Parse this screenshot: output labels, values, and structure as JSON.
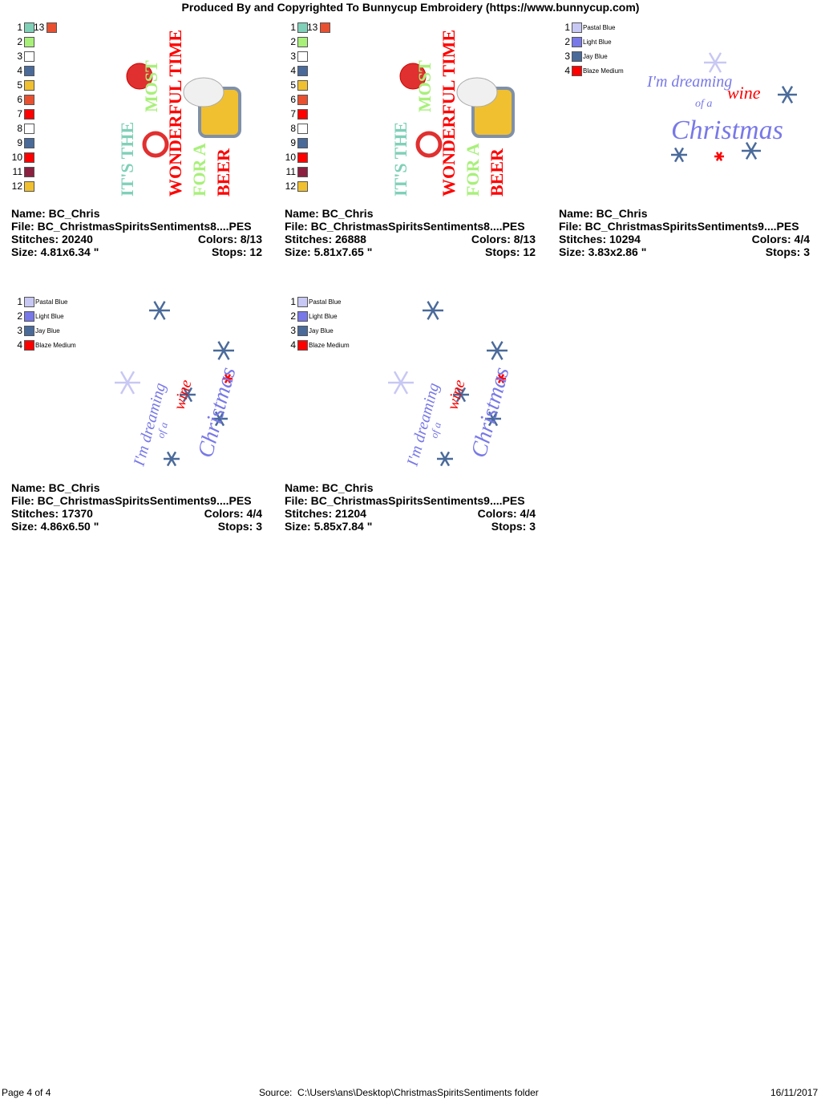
{
  "header": {
    "title": "Produced By and Copyrighted To Bunnycup Embroidery (https://www.bunnycup.com)"
  },
  "designs": [
    {
      "swatches": [
        {
          "number": 1,
          "color": "#80d0b8"
        },
        {
          "number": 2,
          "color": "#a8f07a"
        },
        {
          "number": 3,
          "color": "#ffffff"
        },
        {
          "number": 4,
          "color": "#4a6a9a"
        },
        {
          "number": 5,
          "color": "#f0c030"
        },
        {
          "number": 6,
          "color": "#e85030"
        },
        {
          "number": 7,
          "color": "#ff0000"
        },
        {
          "number": 8,
          "color": "#ffffff"
        },
        {
          "number": 9,
          "color": "#4a6a9a"
        },
        {
          "number": 10,
          "color": "#ff0000"
        },
        {
          "number": 11,
          "color": "#8b2040"
        },
        {
          "number": 12,
          "color": "#f0c030"
        },
        {
          "number": 13,
          "color": "#e85030"
        }
      ],
      "art_text": [
        "IT'S THE",
        "MOST",
        "WONDERFUL TIME",
        "FOR A",
        "BEER"
      ],
      "name": "Name: BC_Chris",
      "file": "File: BC_ChristmasSpiritsSentiments8....PES",
      "stitches": "Stitches: 20240",
      "colors": "Colors: 8/13",
      "size": "Size: 4.81x6.34 \"",
      "stops": "Stops: 12"
    },
    {
      "swatches": [
        {
          "number": 1,
          "color": "#80d0b8"
        },
        {
          "number": 2,
          "color": "#a8f07a"
        },
        {
          "number": 3,
          "color": "#ffffff"
        },
        {
          "number": 4,
          "color": "#4a6a9a"
        },
        {
          "number": 5,
          "color": "#f0c030"
        },
        {
          "number": 6,
          "color": "#e85030"
        },
        {
          "number": 7,
          "color": "#ff0000"
        },
        {
          "number": 8,
          "color": "#ffffff"
        },
        {
          "number": 9,
          "color": "#4a6a9a"
        },
        {
          "number": 10,
          "color": "#ff0000"
        },
        {
          "number": 11,
          "color": "#8b2040"
        },
        {
          "number": 12,
          "color": "#f0c030"
        },
        {
          "number": 13,
          "color": "#e85030"
        }
      ],
      "art_text": [
        "IT'S THE",
        "MOST",
        "WONDERFUL TIME",
        "FOR A",
        "BEER"
      ],
      "name": "Name: BC_Chris",
      "file": "File: BC_ChristmasSpiritsSentiments8....PES",
      "stitches": "Stitches: 26888",
      "colors": "Colors: 8/13",
      "size": "Size: 5.81x7.65 \"",
      "stops": "Stops: 12"
    },
    {
      "swatches": [
        {
          "number": 1,
          "color": "#c8c8f4",
          "label": "Pastal Blue"
        },
        {
          "number": 2,
          "color": "#7878e8",
          "label": "Light Blue"
        },
        {
          "number": 3,
          "color": "#4a6a9a",
          "label": "Jay Blue"
        },
        {
          "number": 4,
          "color": "#ff0000",
          "label": "Blaze Medium"
        }
      ],
      "art_text": [
        "I'm dreaming",
        "of a",
        "wine",
        "Christmas"
      ],
      "name": "Name: BC_Chris",
      "file": "File: BC_ChristmasSpiritsSentiments9....PES",
      "stitches": "Stitches: 10294",
      "colors": "Colors: 4/4",
      "size": "Size: 3.83x2.86 \"",
      "stops": "Stops: 3"
    },
    {
      "swatches": [
        {
          "number": 1,
          "color": "#c8c8f4",
          "label": "Pastal Blue"
        },
        {
          "number": 2,
          "color": "#7878e8",
          "label": "Light Blue"
        },
        {
          "number": 3,
          "color": "#4a6a9a",
          "label": "Jay Blue"
        },
        {
          "number": 4,
          "color": "#ff0000",
          "label": "Blaze Medium"
        }
      ],
      "art_text": [
        "I'm dreaming",
        "of a",
        "wine",
        "Christmas"
      ],
      "name": "Name: BC_Chris",
      "file": "File: BC_ChristmasSpiritsSentiments9....PES",
      "stitches": "Stitches: 17370",
      "colors": "Colors: 4/4",
      "size": "Size: 4.86x6.50 \"",
      "stops": "Stops: 3"
    },
    {
      "swatches": [
        {
          "number": 1,
          "color": "#c8c8f4",
          "label": "Pastal Blue"
        },
        {
          "number": 2,
          "color": "#7878e8",
          "label": "Light Blue"
        },
        {
          "number": 3,
          "color": "#4a6a9a",
          "label": "Jay Blue"
        },
        {
          "number": 4,
          "color": "#ff0000",
          "label": "Blaze Medium"
        }
      ],
      "art_text": [
        "I'm dreaming",
        "of a",
        "wine",
        "Christmas"
      ],
      "name": "Name: BC_Chris",
      "file": "File: BC_ChristmasSpiritsSentiments9....PES",
      "stitches": "Stitches: 21204",
      "colors": "Colors: 4/4",
      "size": "Size: 5.85x7.84 \"",
      "stops": "Stops: 3"
    }
  ],
  "footer": {
    "page": "Page 4 of 4",
    "source": "Source:  C:\\Users\\ans\\Desktop\\ChristmasSpiritsSentiments folder",
    "date": "16/11/2017"
  }
}
